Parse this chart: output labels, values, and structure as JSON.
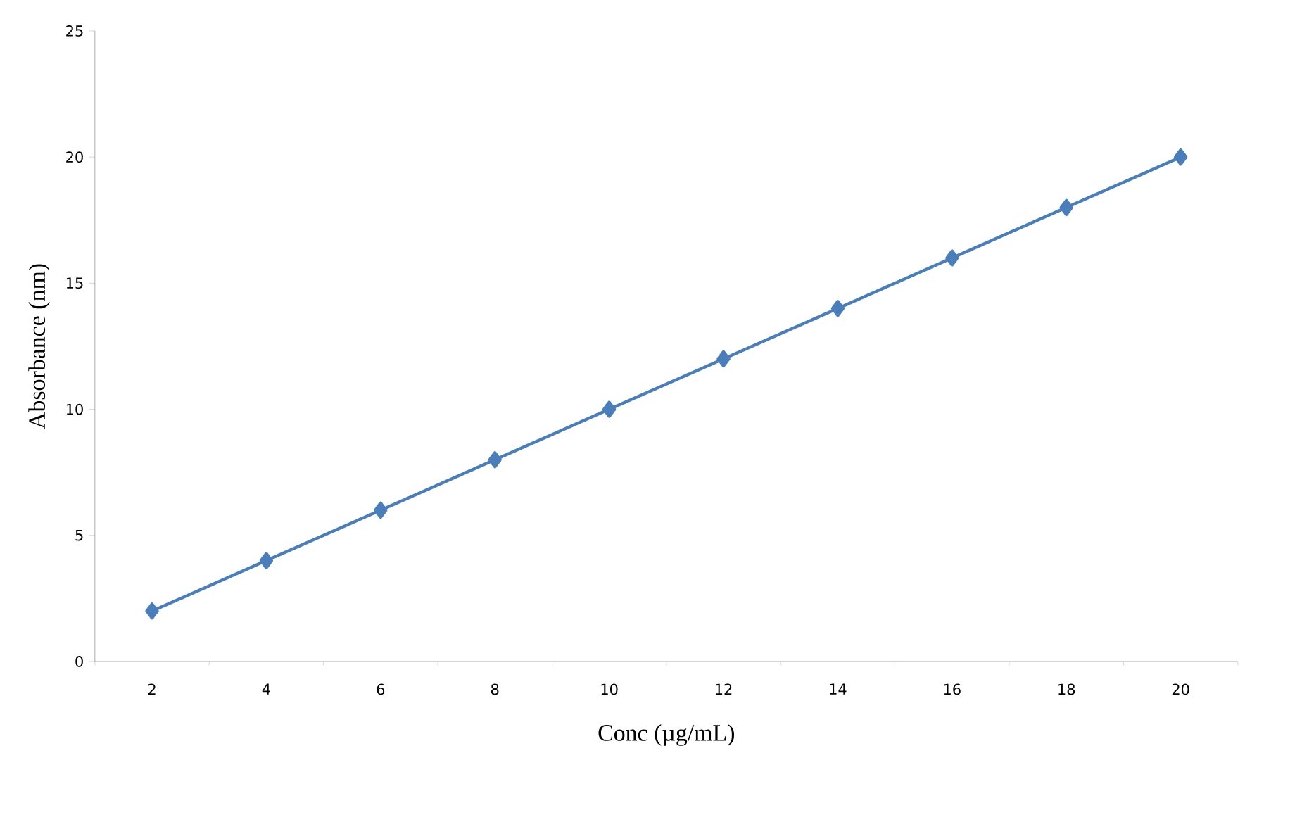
{
  "chart_data": {
    "type": "line",
    "xlabel": "Conc (µg/mL)",
    "ylabel": "Absorbance (nm)",
    "categories": [
      "2",
      "4",
      "6",
      "8",
      "10",
      "12",
      "14",
      "16",
      "18",
      "20"
    ],
    "series": [
      {
        "color": "#4a7ebb",
        "values": [
          2,
          4,
          6,
          8,
          10,
          12,
          14,
          16,
          18,
          20
        ]
      }
    ],
    "ylim": [
      0,
      25
    ],
    "yticks": [
      0,
      5,
      10,
      15,
      20,
      25
    ],
    "marker": "diamond",
    "line_style": "solid"
  }
}
